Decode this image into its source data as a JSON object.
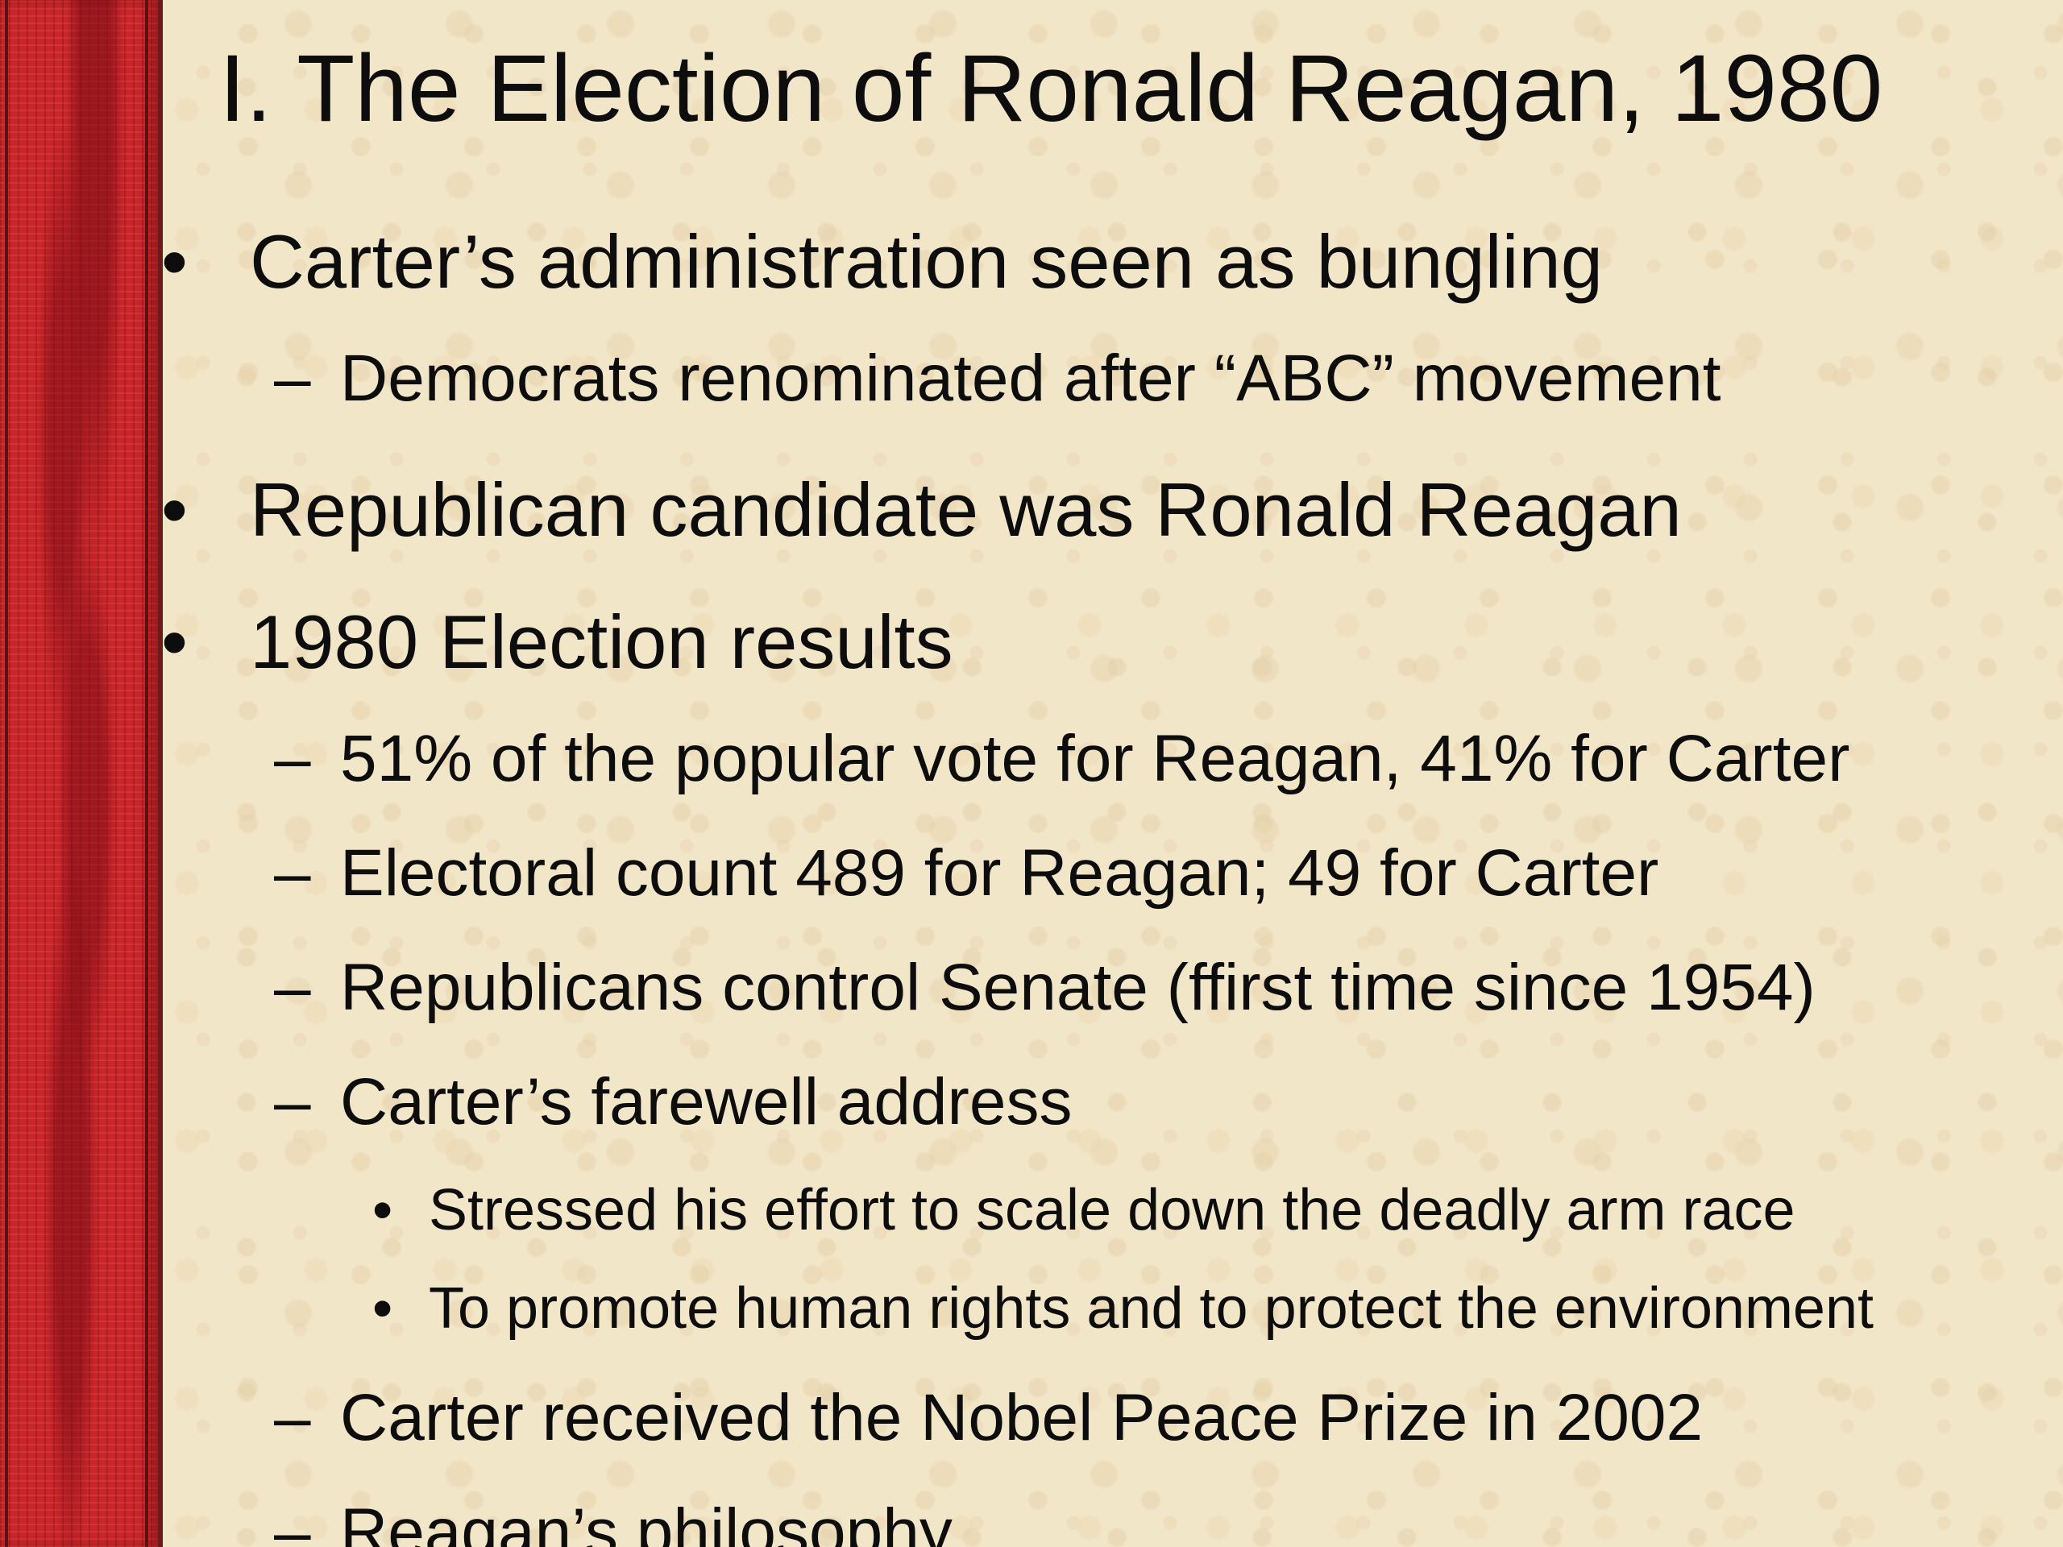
{
  "slide": {
    "title": "I. The Election of Ronald Reagan, 1980",
    "bullets": [
      {
        "marker": "•",
        "text": "Carter’s administration seen as bungling"
      },
      {
        "marker": "–",
        "text": "Democrats renominated after “ABC” movement"
      },
      {
        "marker": "•",
        "text": "Republican candidate was Ronald Reagan"
      },
      {
        "marker": "•",
        "text": "1980 Election results"
      },
      {
        "marker": "–",
        "text": "51% of the popular vote for Reagan, 41% for Carter"
      },
      {
        "marker": "–",
        "text": "Electoral count 489 for Reagan; 49 for Carter"
      },
      {
        "marker": "–",
        "text": "Republicans control Senate (ffirst time since 1954)"
      },
      {
        "marker": "–",
        "text": "Carter’s farewell address"
      },
      {
        "marker": "•",
        "text": "Stressed his effort to scale down the deadly arm race"
      },
      {
        "marker": "•",
        "text": "To promote human rights and to protect the environment"
      },
      {
        "marker": "–",
        "text": "Carter received the Nobel Peace Prize in 2002"
      },
      {
        "marker": "–",
        "text": "Reagan’s philosophy"
      }
    ]
  },
  "colors": {
    "background": "#f2e6c9",
    "side_stripe": "#c8262a",
    "text": "#0d0d0d"
  }
}
